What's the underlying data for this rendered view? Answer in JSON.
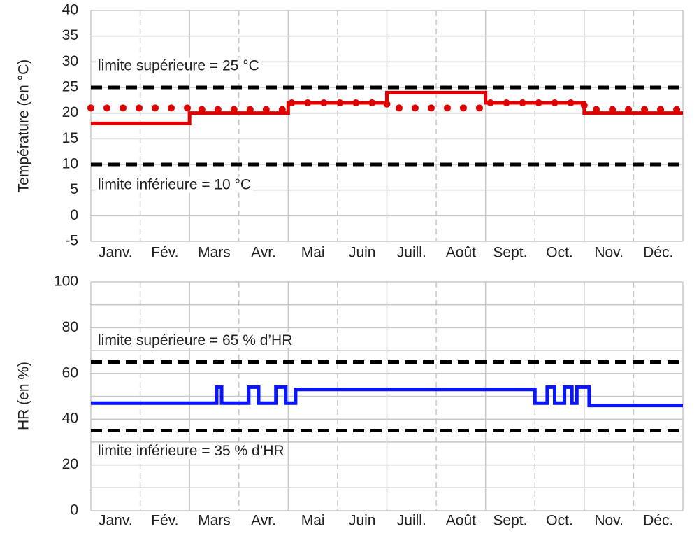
{
  "chart_data": [
    {
      "type": "line",
      "y_label": "Température (en °C)",
      "categories": [
        "Janv.",
        "Fév.",
        "Mars",
        "Avr.",
        "Mai",
        "Juin",
        "Juill.",
        "Août",
        "Sept.",
        "Oct.",
        "Nov.",
        "Déc."
      ],
      "xlim": [
        0,
        12
      ],
      "ylim": [
        -5,
        40
      ],
      "yticks": [
        -5,
        0,
        5,
        10,
        15,
        20,
        25,
        30,
        35,
        40
      ],
      "grid": true,
      "series": [
        {
          "color": "#e00000",
          "style": "solid",
          "x": [
            0,
            2,
            2,
            4,
            4,
            6,
            6,
            8,
            8,
            10,
            10,
            12
          ],
          "values": [
            18,
            18,
            20,
            20,
            22,
            22,
            24,
            24,
            22,
            22,
            20,
            20
          ]
        },
        {
          "color": "#e00000",
          "style": "dotted",
          "x": [
            0,
            2,
            2,
            4,
            4,
            6,
            6,
            8,
            8,
            10,
            10,
            12
          ],
          "values": [
            21,
            21,
            20.7,
            20.7,
            22,
            22,
            21,
            21,
            22,
            22,
            20.7,
            20.7
          ]
        }
      ],
      "hlines": [
        {
          "value": 25,
          "label": "limite supérieure = 25 °C",
          "side": "above"
        },
        {
          "value": 10,
          "label": "limite inférieure = 10 °C",
          "side": "below"
        }
      ]
    },
    {
      "type": "line",
      "y_label": "HR (en %)",
      "categories": [
        "Janv.",
        "Fév.",
        "Mars",
        "Avr.",
        "Mai",
        "Juin",
        "Juill.",
        "Août",
        "Sept.",
        "Oct.",
        "Nov.",
        "Déc."
      ],
      "xlim": [
        0,
        12
      ],
      "ylim": [
        0,
        100
      ],
      "yticks": [
        0,
        20,
        40,
        60,
        80,
        100
      ],
      "minor_yticks": [
        10,
        30,
        50,
        70,
        90
      ],
      "grid": true,
      "series": [
        {
          "color": "#0a14ff",
          "style": "solid",
          "x": [
            0,
            2.55,
            2.55,
            2.65,
            2.65,
            3.2,
            3.2,
            3.4,
            3.4,
            3.75,
            3.75,
            3.95,
            3.95,
            4.15,
            4.15,
            9.0,
            9.0,
            9.25,
            9.25,
            9.4,
            9.4,
            9.6,
            9.6,
            9.75,
            9.75,
            9.85,
            9.85,
            10.1,
            10.1,
            12
          ],
          "values": [
            47,
            47,
            54,
            54,
            47,
            47,
            54,
            54,
            47,
            47,
            54,
            54,
            47,
            47,
            53,
            53,
            47,
            47,
            54,
            54,
            47,
            47,
            54,
            54,
            47,
            47,
            54,
            54,
            46,
            46
          ]
        }
      ],
      "hlines": [
        {
          "value": 65,
          "label": "limite supérieure = 65 % d’HR",
          "side": "above"
        },
        {
          "value": 35,
          "label": "limite inférieure = 35 % d’HR",
          "side": "below"
        }
      ]
    }
  ]
}
